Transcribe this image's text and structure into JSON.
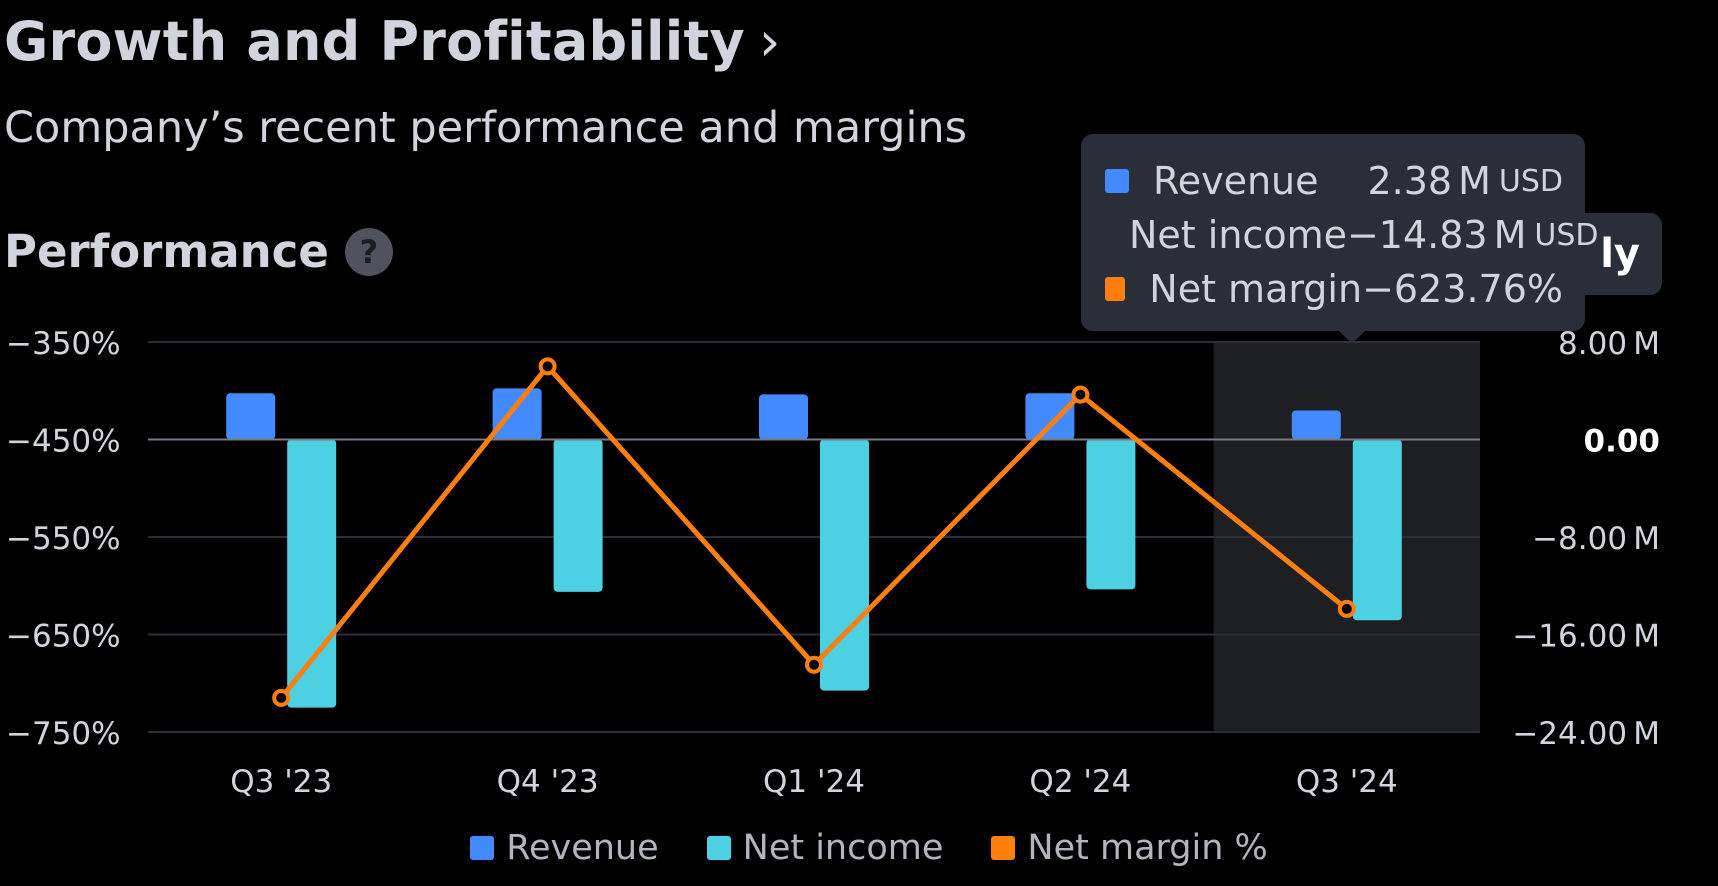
{
  "header": {
    "title": "Growth and Profitability",
    "chevron": "›",
    "subtitle": "Company’s recent performance and margins"
  },
  "section": {
    "title": "Performance",
    "help_icon": "?"
  },
  "toggle": {
    "label": "ly"
  },
  "tooltip": {
    "rows": [
      {
        "label": "Revenue",
        "value": "2.38",
        "unit_suffix": "M",
        "unit": "USD",
        "color": "#448aff"
      },
      {
        "label": "Net income",
        "value": "−14.83",
        "unit_suffix": "M",
        "unit": "USD",
        "color": "#4dd0e1"
      },
      {
        "label": "Net margin",
        "value": "−623.76%",
        "unit_suffix": "",
        "unit": "",
        "color": "#ff7f0e"
      }
    ]
  },
  "legend": [
    {
      "label": "Revenue",
      "color": "#448aff"
    },
    {
      "label": "Net income",
      "color": "#4dd0e1"
    },
    {
      "label": "Net margin %",
      "color": "#ff7f0e"
    }
  ],
  "colors": {
    "revenue": "#448aff",
    "net_income": "#4dd0e1",
    "net_margin": "#ff7f0e",
    "highlight": "#1e1f22",
    "grid": "#2a2e39",
    "zero_line": "#787b86"
  },
  "chart_data": {
    "type": "bar",
    "categories": [
      "Q3 '23",
      "Q4 '23",
      "Q1 '24",
      "Q2 '24",
      "Q3 '24"
    ],
    "highlighted_category": "Q3 '24",
    "series": [
      {
        "name": "Revenue",
        "axis": "right",
        "kind": "bar",
        "values": [
          3.8,
          4.2,
          3.7,
          3.8,
          2.38
        ]
      },
      {
        "name": "Net income",
        "axis": "right",
        "kind": "bar",
        "values": [
          -22.0,
          -12.5,
          -20.6,
          -12.3,
          -14.83
        ]
      },
      {
        "name": "Net margin %",
        "axis": "left",
        "kind": "line",
        "values": [
          -715,
          -375,
          -681,
          -404,
          -623.76
        ]
      }
    ],
    "left_axis": {
      "ylim": [
        -750,
        -350
      ],
      "ticks": [
        -350,
        -450,
        -550,
        -650,
        -750
      ],
      "tick_labels": [
        "−350%",
        "−450%",
        "−550%",
        "−650%",
        "−750%"
      ]
    },
    "right_axis": {
      "ylim": [
        -24,
        8
      ],
      "ticks": [
        8,
        0,
        -8,
        -16,
        -24
      ],
      "tick_labels": [
        "8.00",
        "0.00",
        "−8.00",
        "−16.00",
        "−24.00"
      ],
      "tick_suffixes": [
        "M",
        "",
        "M",
        "M",
        "M"
      ]
    },
    "grid": true,
    "legend_position": "bottom"
  }
}
